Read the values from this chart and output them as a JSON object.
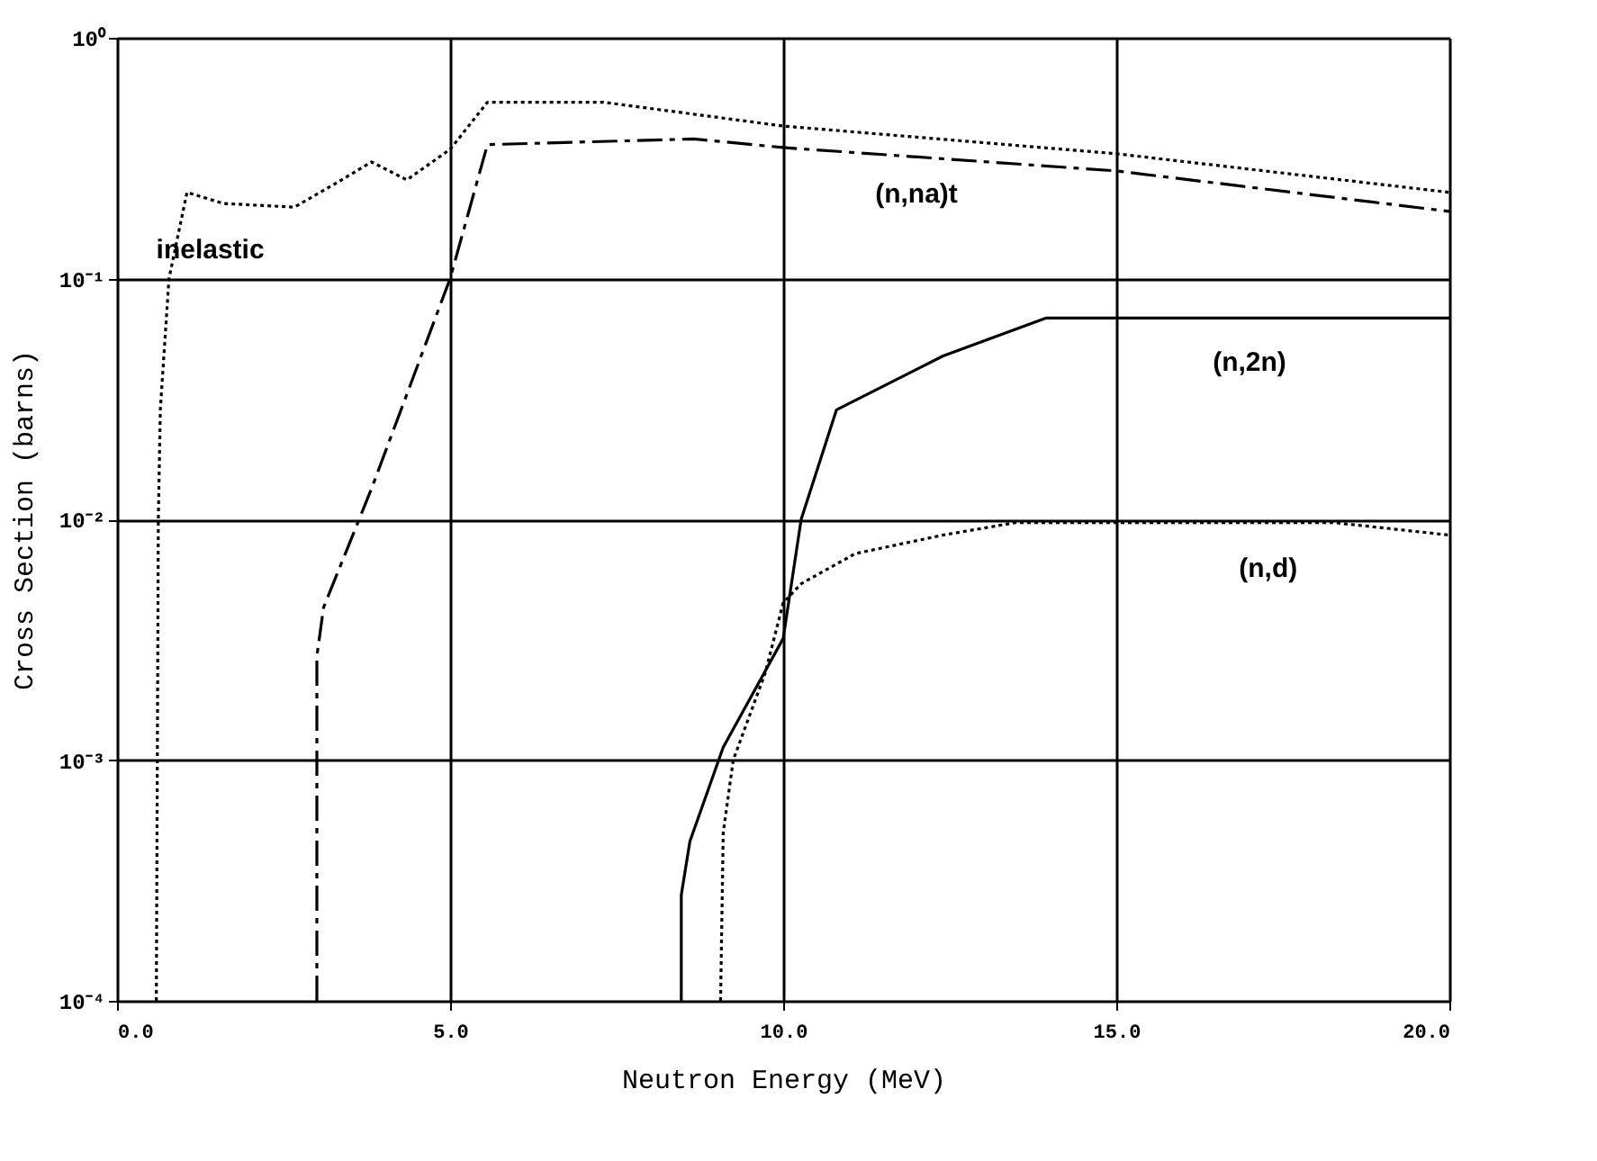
{
  "chart_data": {
    "type": "line",
    "xlabel": "Neutron Energy (MeV)",
    "ylabel": "Cross Section (barns)",
    "log": "y",
    "grid": true,
    "xlim": [
      0,
      20
    ],
    "xticks": [
      {
        "value": 0,
        "label": "0.0"
      },
      {
        "value": 5,
        "label": "5.0"
      },
      {
        "value": 10,
        "label": "10.0"
      },
      {
        "value": 15,
        "label": "15.0"
      },
      {
        "value": 20,
        "label": "20.0"
      }
    ],
    "ylim": [
      0.0001,
      1
    ],
    "yticks": [
      {
        "value": 0.0001,
        "label": "10⁻⁴"
      },
      {
        "value": 0.001,
        "label": "10⁻³"
      },
      {
        "value": 0.01,
        "label": "10⁻²"
      },
      {
        "value": 0.1,
        "label": "10⁻¹"
      },
      {
        "value": 1,
        "label": "10⁰"
      }
    ],
    "series": [
      {
        "name": "inelastic",
        "color": "#000000",
        "line_style": "dotted",
        "x": [
          0.59,
          0.62,
          0.65,
          0.78,
          1.05,
          1.6,
          2.66,
          3.3,
          3.82,
          4.35,
          5.0,
          5.56,
          7.3,
          10.0,
          15.0,
          20.0
        ],
        "values": [
          0.0001,
          0.01,
          0.0285,
          0.1,
          0.228,
          0.205,
          0.198,
          0.25,
          0.305,
          0.257,
          0.344,
          0.54,
          0.54,
          0.43,
          0.33,
          0.228
        ]
      },
      {
        "name": "(n,na)t",
        "color": "#000000",
        "line_style": "dashed",
        "x": [
          3.0,
          3.0,
          3.1,
          3.82,
          5.0,
          5.56,
          8.66,
          10.0,
          15.0,
          20.0
        ],
        "values": [
          0.0001,
          0.0027,
          0.0043,
          0.0134,
          0.1,
          0.36,
          0.38,
          0.35,
          0.28,
          0.19
        ]
      },
      {
        "name": "(n,2n)",
        "color": "#000000",
        "line_style": "solid",
        "x": [
          8.47,
          8.47,
          8.6,
          9.1,
          10.0,
          10.27,
          10.8,
          12.4,
          13.95,
          20.0
        ],
        "values": [
          0.0001,
          0.000275,
          0.00046,
          0.00113,
          0.0032,
          0.01,
          0.0285,
          0.0477,
          0.0686,
          0.0686
        ]
      },
      {
        "name": "(n,d)",
        "color": "#000000",
        "line_style": "dotted",
        "x": [
          9.06,
          9.1,
          9.25,
          9.73,
          10.0,
          10.27,
          11.08,
          12.4,
          13.5,
          18.25,
          20.0
        ],
        "values": [
          0.0001,
          0.0005,
          0.001,
          0.0023,
          0.0045,
          0.0054,
          0.0072,
          0.0086,
          0.0097,
          0.0097,
          0.0086
        ]
      }
    ]
  }
}
